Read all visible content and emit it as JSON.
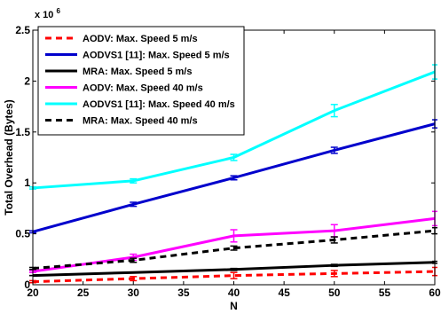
{
  "chart_data": {
    "type": "line",
    "xlabel": "N",
    "ylabel": "Total Overhead (Bytes)",
    "y_exponent_label": "x 10",
    "y_exponent_power": "6",
    "xlim": [
      20,
      60
    ],
    "ylim": [
      0,
      2.5
    ],
    "x_ticks": [
      "20",
      "25",
      "30",
      "35",
      "40",
      "45",
      "50",
      "55",
      "60"
    ],
    "y_ticks": [
      "0",
      "0.5",
      "1",
      "1.5",
      "2",
      "2.5"
    ],
    "x": [
      20,
      30,
      40,
      50,
      60
    ],
    "grid": false,
    "legend_position": "top-left",
    "series": [
      {
        "name": "AODV: Max. Speed 5 m/s",
        "color": "#ff0000",
        "dash": "dashed",
        "values": [
          0.03,
          0.06,
          0.09,
          0.11,
          0.13
        ],
        "errors": [
          0.01,
          0.02,
          0.03,
          0.03,
          0.04
        ]
      },
      {
        "name": "AODVS1 [11]: Max. Speed 5 m/s",
        "color": "#0000cc",
        "dash": "solid",
        "values": [
          0.52,
          0.79,
          1.05,
          1.32,
          1.58
        ],
        "errors": [
          0.01,
          0.02,
          0.02,
          0.03,
          0.04
        ]
      },
      {
        "name": "MRA: Max. Speed 5 m/s",
        "color": "#000000",
        "dash": "solid",
        "values": [
          0.09,
          0.12,
          0.15,
          0.19,
          0.22
        ],
        "errors": [
          0.0,
          0.0,
          0.01,
          0.01,
          0.01
        ]
      },
      {
        "name": "AODV: Max. Speed 40 m/s",
        "color": "#ff00ff",
        "dash": "solid",
        "values": [
          0.13,
          0.27,
          0.48,
          0.53,
          0.65
        ],
        "errors": [
          0.01,
          0.03,
          0.06,
          0.06,
          0.07
        ]
      },
      {
        "name": "AODVS1 [11]: Max. Speed 40 m/s",
        "color": "#00ffff",
        "dash": "solid",
        "values": [
          0.95,
          1.02,
          1.25,
          1.71,
          2.09
        ],
        "errors": [
          0.01,
          0.02,
          0.03,
          0.06,
          0.07
        ]
      },
      {
        "name": "MRA: Max. Speed 40 m/s",
        "color": "#000000",
        "dash": "dashed",
        "values": [
          0.16,
          0.24,
          0.36,
          0.44,
          0.53
        ],
        "errors": [
          0.01,
          0.02,
          0.02,
          0.03,
          0.03
        ]
      }
    ]
  }
}
